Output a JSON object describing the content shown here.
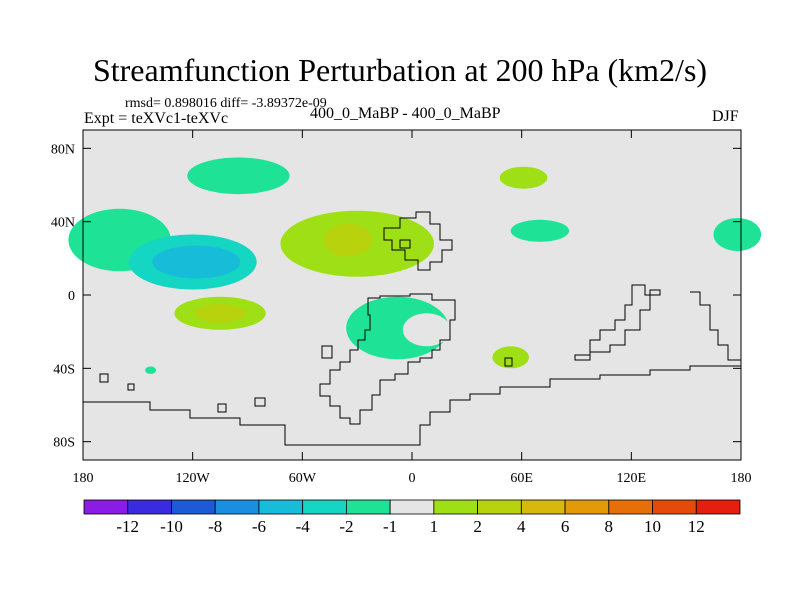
{
  "chart_data": {
    "type": "heatmap",
    "title": "Streamfunction Perturbation at 200 hPa (km2/s)",
    "stats_text": "rmsd= 0.898016 diff= -3.89372e-09",
    "left_label": "Expt = teXVc1-teXVc",
    "center_label": "400_0_MaBP - 400_0_MaBP",
    "right_label": "DJF",
    "xlim": [
      -180,
      180
    ],
    "ylim": [
      -90,
      90
    ],
    "x_ticks": [
      {
        "value": -180,
        "label": "180"
      },
      {
        "value": -120,
        "label": "120W"
      },
      {
        "value": -60,
        "label": "60W"
      },
      {
        "value": 0,
        "label": "0"
      },
      {
        "value": 60,
        "label": "60E"
      },
      {
        "value": 120,
        "label": "120E"
      },
      {
        "value": 180,
        "label": "180"
      }
    ],
    "y_ticks": [
      {
        "value": 80,
        "label": "80N"
      },
      {
        "value": 40,
        "label": "40N"
      },
      {
        "value": 0,
        "label": "0"
      },
      {
        "value": -40,
        "label": "40S"
      },
      {
        "value": -80,
        "label": "80S"
      }
    ],
    "colorbar": {
      "colors": [
        "#8a1ce6",
        "#3a2be0",
        "#1f5ad6",
        "#1a8fe0",
        "#17bcd9",
        "#15d6c2",
        "#1ee396",
        "#e5e5e5",
        "#9ee015",
        "#b8d20e",
        "#d6b90c",
        "#e39a09",
        "#e66f09",
        "#e64a0a",
        "#e61e10"
      ],
      "labels": [
        "-12",
        "-10",
        "-8",
        "-6",
        "-4",
        "-2",
        "-1",
        "1",
        "2",
        "4",
        "6",
        "8",
        "10",
        "12"
      ]
    },
    "regions": [
      {
        "name": "n-pacific-lobe",
        "level_index": 6,
        "center": [
          -95,
          65
        ],
        "radius": [
          28,
          10
        ]
      },
      {
        "name": "ne-pacific-lobe",
        "level_index": 6,
        "center": [
          -160,
          30
        ],
        "radius": [
          28,
          17
        ]
      },
      {
        "name": "central-pacific-low",
        "level_index": 5,
        "center": [
          -120,
          18
        ],
        "radius": [
          35,
          15
        ]
      },
      {
        "name": "central-pacific-core",
        "level_index": 4,
        "center": [
          -118,
          18
        ],
        "radius": [
          24,
          9
        ]
      },
      {
        "name": "atlantic-high",
        "level_index": 8,
        "center": [
          -30,
          28
        ],
        "radius": [
          42,
          18
        ]
      },
      {
        "name": "atlantic-high-core",
        "level_index": 9,
        "center": [
          -35,
          30
        ],
        "radius": [
          13,
          9
        ]
      },
      {
        "name": "tropical-pacific-high",
        "level_index": 8,
        "center": [
          -105,
          -10
        ],
        "radius": [
          25,
          9
        ]
      },
      {
        "name": "tropical-pacific-core",
        "level_index": 9,
        "center": [
          -105,
          -10
        ],
        "radius": [
          14,
          5
        ]
      },
      {
        "name": "s-atlantic-low",
        "level_index": 6,
        "center": [
          -8,
          -18
        ],
        "radius": [
          28,
          17
        ]
      },
      {
        "name": "s-atlantic-inner",
        "level_index": 7,
        "center": [
          8,
          -19
        ],
        "radius": [
          13,
          9
        ]
      },
      {
        "name": "asia-high",
        "level_index": 8,
        "center": [
          61,
          64
        ],
        "radius": [
          13,
          6
        ]
      },
      {
        "name": "indian-ocean-high",
        "level_index": 8,
        "center": [
          54,
          -34
        ],
        "radius": [
          10,
          6
        ]
      },
      {
        "name": "w-pacific-lobe",
        "level_index": 6,
        "center": [
          70,
          35
        ],
        "radius": [
          16,
          6
        ]
      },
      {
        "name": "dateline-lobe",
        "level_index": 6,
        "center": [
          178,
          33
        ],
        "radius": [
          13,
          9
        ]
      },
      {
        "name": "small-s-pacific",
        "level_index": 6,
        "center": [
          -143,
          -41
        ],
        "radius": [
          3,
          2
        ]
      }
    ]
  }
}
